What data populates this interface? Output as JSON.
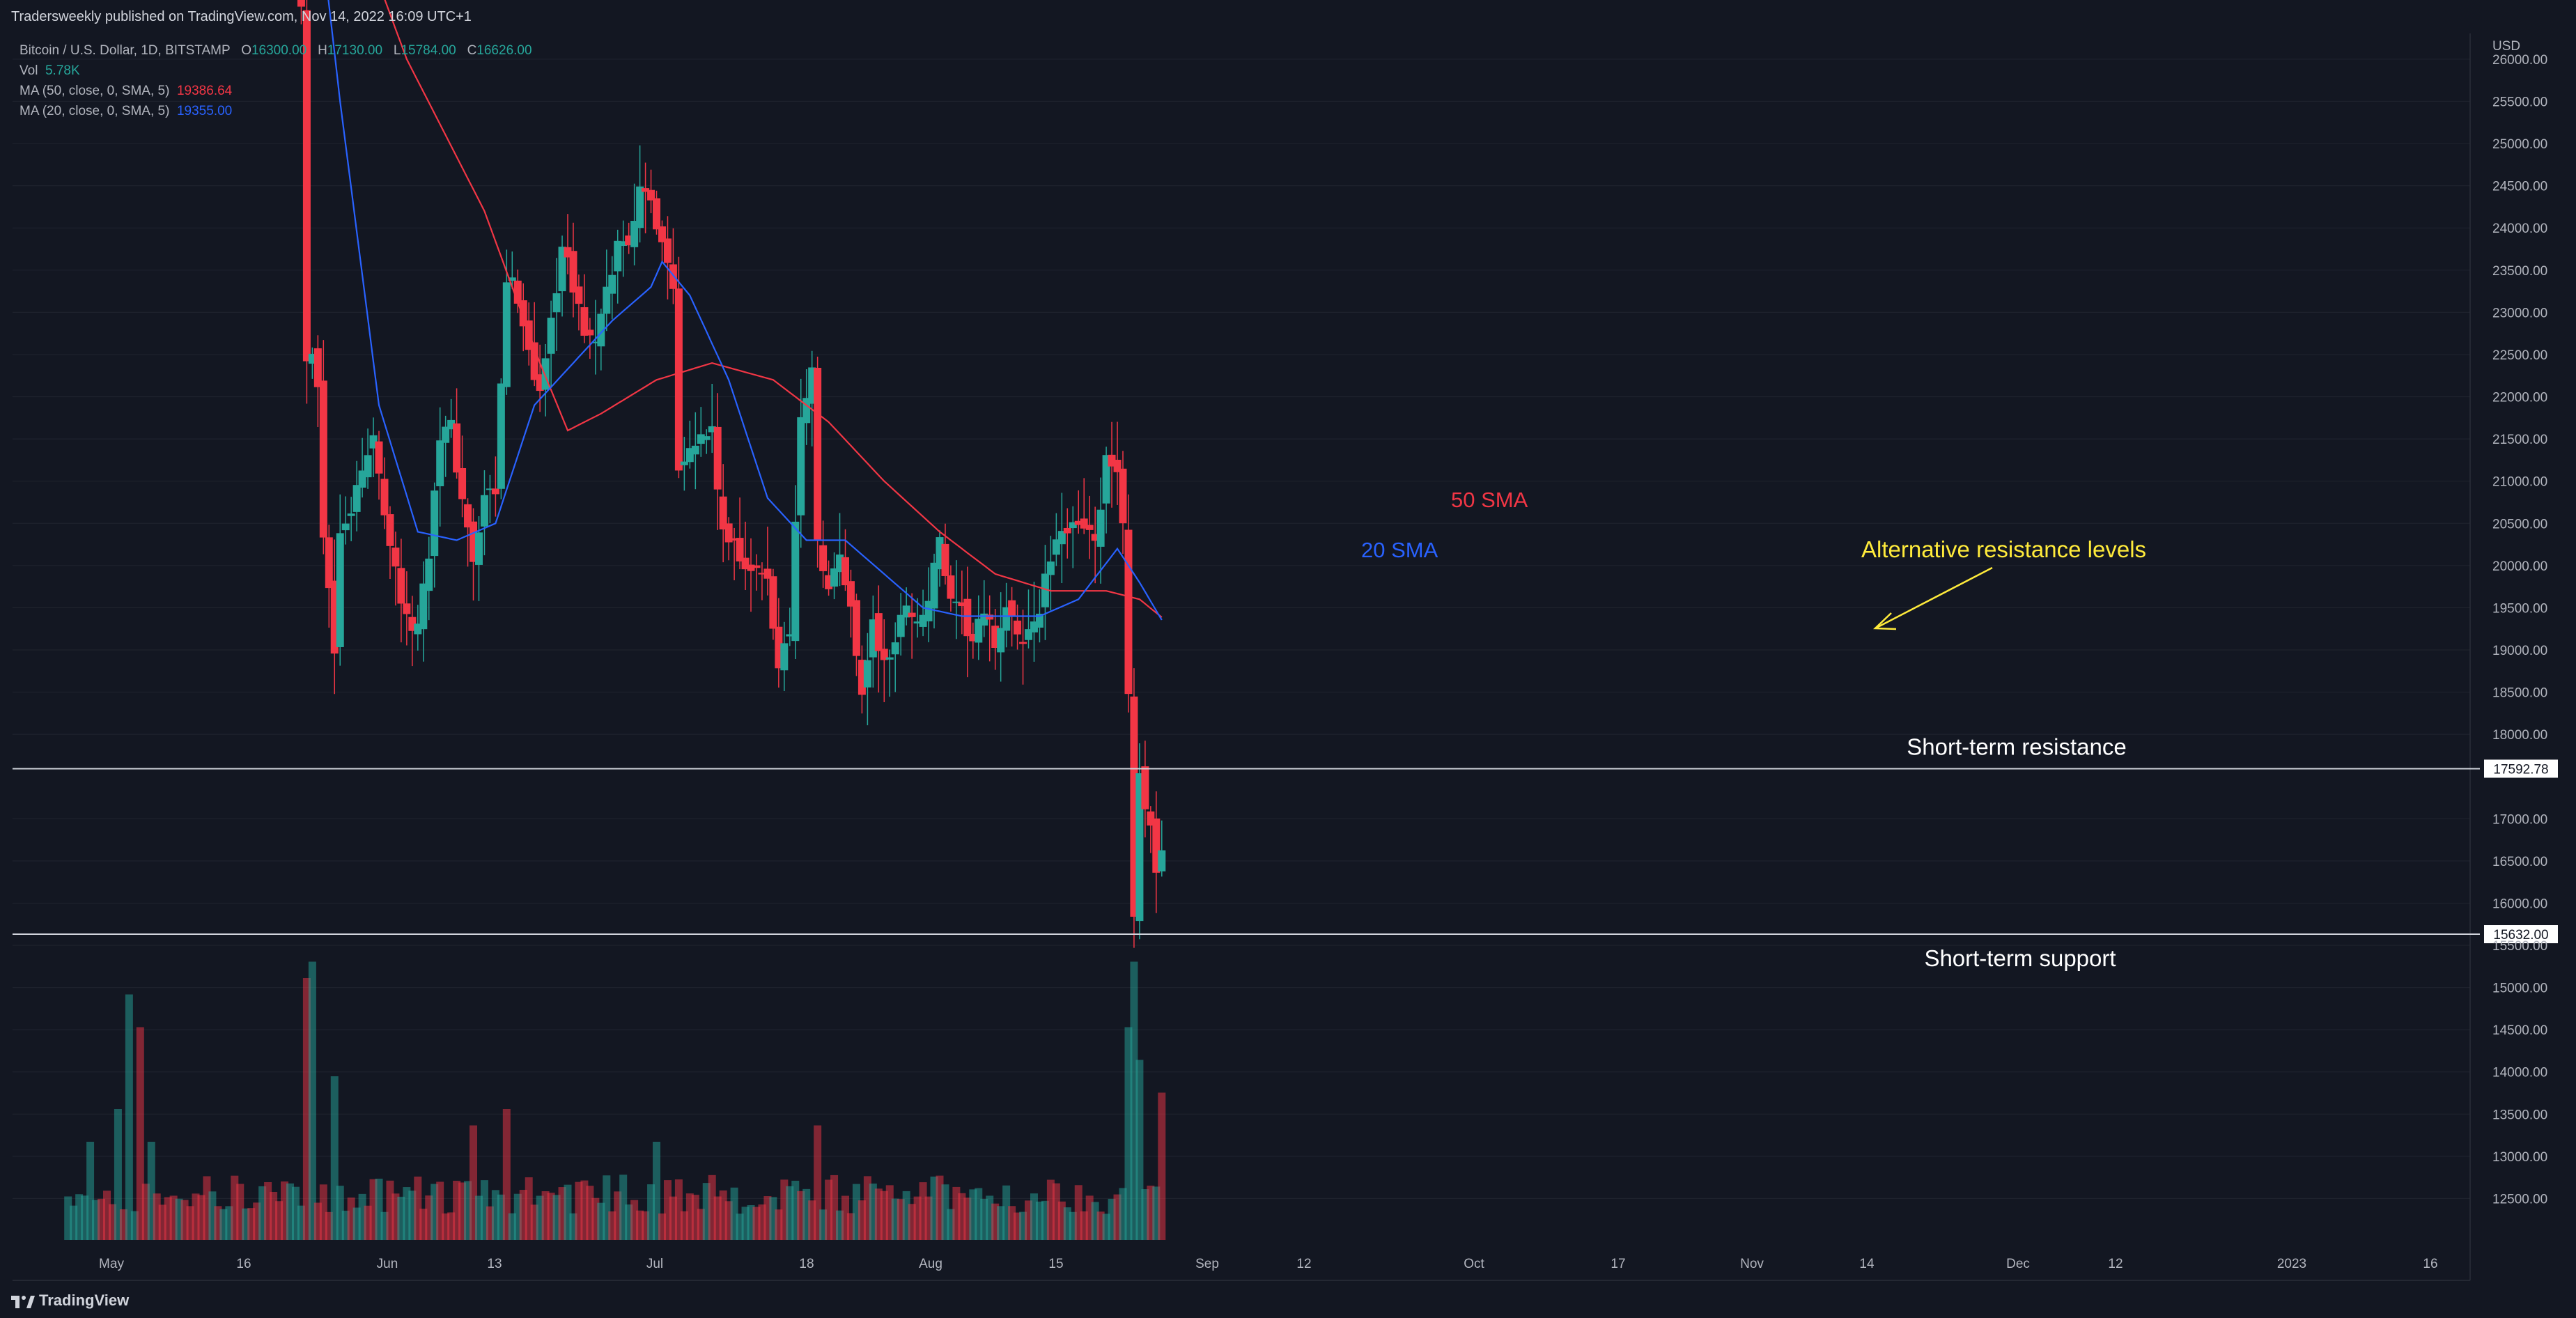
{
  "header": {
    "published": "Tradersweekly published on TradingView.com, Nov 14, 2022 16:09 UTC+1"
  },
  "legend": {
    "symbol": "Bitcoin / U.S. Dollar, 1D, BITSTAMP",
    "o_label": "O",
    "o_value": "16300.00",
    "h_label": "H",
    "h_value": "17130.00",
    "l_label": "L",
    "l_value": "15784.00",
    "c_label": "C",
    "c_value": "16626.00",
    "vol_label": "Vol",
    "vol_value": "5.78K",
    "ma50_label": "MA (50, close, 0, SMA, 5)",
    "ma50_value": "19386.64",
    "ma20_label": "MA (20, close, 0, SMA, 5)",
    "ma20_value": "19355.00"
  },
  "footer": {
    "brand": "TradingView"
  },
  "colors": {
    "up": "#26a69a",
    "down": "#f23645",
    "sma50": "#f23645",
    "sma20": "#2962ff",
    "annotation": "#ffeb3b",
    "background": "#131722",
    "grid": "#1e222d"
  },
  "chart_data": {
    "type": "candlestick",
    "symbol": "BTCUSD",
    "timeframe": "1D",
    "currency": "USD",
    "y_axis": {
      "unit": "USD",
      "range": [
        12200,
        26600
      ],
      "ticks": [
        "26000.00",
        "25500.00",
        "25000.00",
        "24500.00",
        "24000.00",
        "23500.00",
        "23000.00",
        "22500.00",
        "22000.00",
        "21500.00",
        "21000.00",
        "20500.00",
        "20000.00",
        "19500.00",
        "19000.00",
        "18500.00",
        "18000.00",
        "17000.00",
        "16500.00",
        "16000.00",
        "15500.00",
        "15000.00",
        "14500.00",
        "14000.00",
        "13500.00",
        "13000.00",
        "12500.00"
      ]
    },
    "x_axis": {
      "labels": [
        "May",
        "16",
        "Jun",
        "13",
        "Jul",
        "18",
        "Aug",
        "15",
        "Sep",
        "12",
        "Oct",
        "17",
        "Nov",
        "14",
        "Dec",
        "12",
        "2023",
        "16"
      ]
    },
    "horizontal_lines": [
      {
        "price": 17592.78,
        "label": "17592.78",
        "text": "Short-term resistance"
      },
      {
        "price": 15632.0,
        "label": "15632.00",
        "text": "Short-term support"
      }
    ],
    "annotations": {
      "sma50": "50 SMA",
      "sma20": "20 SMA",
      "alt": "Alternative resistance levels"
    },
    "close_path": [
      [
        "2022-06-10",
        29000
      ],
      [
        "2022-06-12",
        26600
      ],
      [
        "2022-06-13",
        22500
      ],
      [
        "2022-06-14",
        22600
      ],
      [
        "2022-06-15",
        22200
      ],
      [
        "2022-06-16",
        20400
      ],
      [
        "2022-06-18",
        19000
      ],
      [
        "2022-06-19",
        20500
      ],
      [
        "2022-06-21",
        20700
      ],
      [
        "2022-06-23",
        21100
      ],
      [
        "2022-06-25",
        21500
      ],
      [
        "2022-06-28",
        20300
      ],
      [
        "2022-07-01",
        19300
      ],
      [
        "2022-07-03",
        19300
      ],
      [
        "2022-07-05",
        20200
      ],
      [
        "2022-07-07",
        21600
      ],
      [
        "2022-07-09",
        21600
      ],
      [
        "2022-07-11",
        20800
      ],
      [
        "2022-07-13",
        20000
      ],
      [
        "2022-07-15",
        20800
      ],
      [
        "2022-07-17",
        20800
      ],
      [
        "2022-07-19",
        23400
      ],
      [
        "2022-07-21",
        23200
      ],
      [
        "2022-07-23",
        22600
      ],
      [
        "2022-07-25",
        22000
      ],
      [
        "2022-07-27",
        22900
      ],
      [
        "2022-07-29",
        23800
      ],
      [
        "2022-07-31",
        23300
      ],
      [
        "2022-08-02",
        22800
      ],
      [
        "2022-08-04",
        22600
      ],
      [
        "2022-08-06",
        23200
      ],
      [
        "2022-08-08",
        23800
      ],
      [
        "2022-08-10",
        23900
      ],
      [
        "2022-08-12",
        24400
      ],
      [
        "2022-08-14",
        24300
      ],
      [
        "2022-08-16",
        23900
      ],
      [
        "2022-08-18",
        23300
      ],
      [
        "2022-08-19",
        21200
      ],
      [
        "2022-08-21",
        21500
      ],
      [
        "2022-08-23",
        21500
      ],
      [
        "2022-08-25",
        21600
      ],
      [
        "2022-08-27",
        20300
      ],
      [
        "2022-08-29",
        20300
      ],
      [
        "2022-08-31",
        20000
      ],
      [
        "2022-09-02",
        19900
      ],
      [
        "2022-09-04",
        19800
      ],
      [
        "2022-09-06",
        18800
      ],
      [
        "2022-09-08",
        19300
      ],
      [
        "2022-09-10",
        21700
      ],
      [
        "2022-09-12",
        22400
      ],
      [
        "2022-09-13",
        20200
      ],
      [
        "2022-09-15",
        19700
      ],
      [
        "2022-09-17",
        20100
      ],
      [
        "2022-09-19",
        19500
      ],
      [
        "2022-09-21",
        18500
      ],
      [
        "2022-09-23",
        19300
      ],
      [
        "2022-09-25",
        18800
      ],
      [
        "2022-09-27",
        19100
      ],
      [
        "2022-09-29",
        19600
      ],
      [
        "2022-10-01",
        19300
      ],
      [
        "2022-10-03",
        19600
      ],
      [
        "2022-10-05",
        20300
      ],
      [
        "2022-10-07",
        19500
      ],
      [
        "2022-10-09",
        19400
      ],
      [
        "2022-10-11",
        19100
      ],
      [
        "2022-10-13",
        19400
      ],
      [
        "2022-10-15",
        19100
      ],
      [
        "2022-10-17",
        19500
      ],
      [
        "2022-10-19",
        19100
      ],
      [
        "2022-10-21",
        19200
      ],
      [
        "2022-10-23",
        19500
      ],
      [
        "2022-10-25",
        20100
      ],
      [
        "2022-10-27",
        20300
      ],
      [
        "2022-10-29",
        20600
      ],
      [
        "2022-10-31",
        20500
      ],
      [
        "2022-11-02",
        20200
      ],
      [
        "2022-11-04",
        21200
      ],
      [
        "2022-11-06",
        21000
      ],
      [
        "2022-11-07",
        20600
      ],
      [
        "2022-11-08",
        18500
      ],
      [
        "2022-11-09",
        15900
      ],
      [
        "2022-11-10",
        17600
      ],
      [
        "2022-11-11",
        17000
      ],
      [
        "2022-11-12",
        16800
      ],
      [
        "2022-11-13",
        16300
      ],
      [
        "2022-11-14",
        16626
      ]
    ],
    "sma20": [
      [
        "2022-06-12",
        29500
      ],
      [
        "2022-06-19",
        25500
      ],
      [
        "2022-06-26",
        21900
      ],
      [
        "2022-07-03",
        20400
      ],
      [
        "2022-07-10",
        20300
      ],
      [
        "2022-07-17",
        20500
      ],
      [
        "2022-07-24",
        21900
      ],
      [
        "2022-07-31",
        22400
      ],
      [
        "2022-08-07",
        22900
      ],
      [
        "2022-08-14",
        23300
      ],
      [
        "2022-08-16",
        23600
      ],
      [
        "2022-08-21",
        23200
      ],
      [
        "2022-08-28",
        22200
      ],
      [
        "2022-09-04",
        20800
      ],
      [
        "2022-09-11",
        20300
      ],
      [
        "2022-09-18",
        20300
      ],
      [
        "2022-09-25",
        19900
      ],
      [
        "2022-10-02",
        19500
      ],
      [
        "2022-10-09",
        19400
      ],
      [
        "2022-10-16",
        19400
      ],
      [
        "2022-10-23",
        19400
      ],
      [
        "2022-10-30",
        19600
      ],
      [
        "2022-11-06",
        20200
      ],
      [
        "2022-11-10",
        19800
      ],
      [
        "2022-11-14",
        19355
      ]
    ],
    "sma50": [
      [
        "2022-06-17",
        28500
      ],
      [
        "2022-07-01",
        26000
      ],
      [
        "2022-07-15",
        24200
      ],
      [
        "2022-07-25",
        22400
      ],
      [
        "2022-07-30",
        21600
      ],
      [
        "2022-08-05",
        21800
      ],
      [
        "2022-08-15",
        22200
      ],
      [
        "2022-08-25",
        22400
      ],
      [
        "2022-09-05",
        22200
      ],
      [
        "2022-09-15",
        21700
      ],
      [
        "2022-09-25",
        21000
      ],
      [
        "2022-10-05",
        20400
      ],
      [
        "2022-10-15",
        19900
      ],
      [
        "2022-10-25",
        19700
      ],
      [
        "2022-11-04",
        19700
      ],
      [
        "2022-11-10",
        19600
      ],
      [
        "2022-11-14",
        19387
      ]
    ],
    "volume_profile": [
      [
        "2022-05-05",
        0.3
      ],
      [
        "2022-05-10",
        0.4
      ],
      [
        "2022-05-12",
        0.75
      ],
      [
        "2022-05-14",
        0.65
      ],
      [
        "2022-05-16",
        0.3
      ],
      [
        "2022-06-13",
        0.8
      ],
      [
        "2022-06-14",
        0.85
      ],
      [
        "2022-06-18",
        0.5
      ],
      [
        "2022-07-13",
        0.35
      ],
      [
        "2022-07-19",
        0.4
      ],
      [
        "2022-08-15",
        0.3
      ],
      [
        "2022-09-13",
        0.35
      ],
      [
        "2022-11-08",
        0.65
      ],
      [
        "2022-11-09",
        0.85
      ],
      [
        "2022-11-10",
        0.55
      ],
      [
        "2022-11-14",
        0.45
      ]
    ]
  }
}
